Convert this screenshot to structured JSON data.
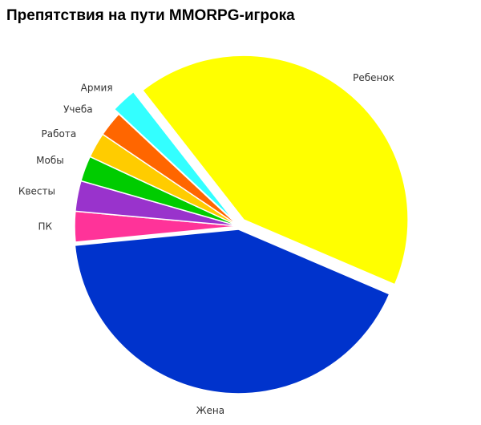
{
  "chart_data": {
    "type": "pie",
    "title": "Препятствия на пути MMORPG-игрока",
    "categories": [
      "Ребенок",
      "Жена",
      "ПК",
      "Квесты",
      "Мобы",
      "Работа",
      "Учеба",
      "Армия"
    ],
    "values": [
      42,
      42,
      3,
      3,
      2.5,
      2.5,
      2.5,
      2.5
    ],
    "colors": [
      "#ffff00",
      "#0033cc",
      "#ff3399",
      "#9933cc",
      "#00cc00",
      "#ffcc00",
      "#ff6600",
      "#33ffff"
    ]
  }
}
